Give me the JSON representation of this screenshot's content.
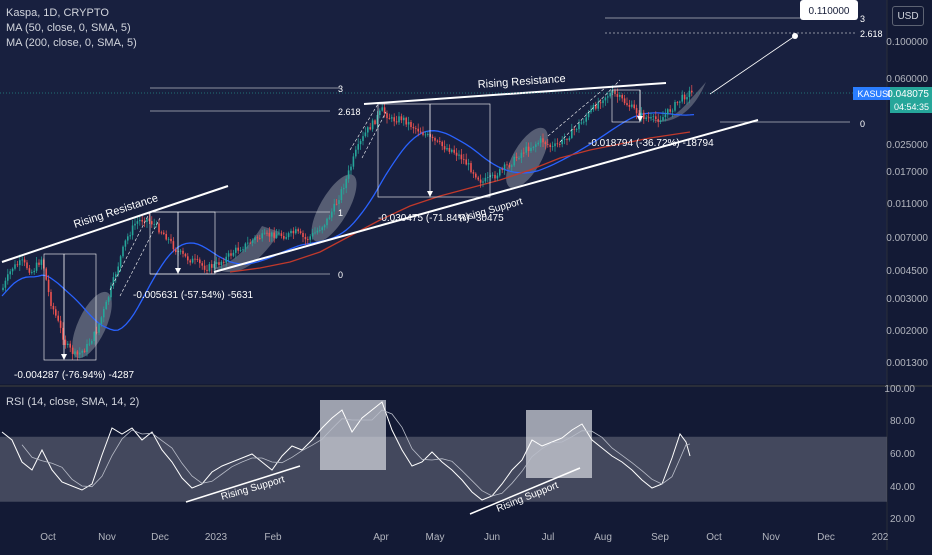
{
  "header": {
    "title": "Kaspa, 1D, CRYPTO",
    "ma50": "MA (50, close, 0, SMA, 5)",
    "ma200": "MA (200, close, 0, SMA, 5)",
    "currency": "USD"
  },
  "rsi_label": "RSI (14, close, SMA, 14, 2)",
  "price_tag": {
    "symbol": "KASUSD",
    "price": "0.048075",
    "countdown": "04:54:35"
  },
  "colors": {
    "background": "#131a35",
    "price_bg": "#18203f",
    "candle_up": "#26a69a",
    "candle_down": "#ef5350",
    "ma50": "#2962ff",
    "ma200": "#c0392b",
    "rsi_band": "#6b6f7d",
    "annotation": "#ffffff",
    "price_tag": "#2a7dff"
  },
  "chart_data": {
    "type": "candlestick",
    "x_ticks": [
      "Oct",
      "Nov",
      "Dec",
      "2023",
      "Feb",
      "Apr",
      "May",
      "Jun",
      "Jul",
      "Aug",
      "Sep",
      "Oct",
      "Nov",
      "Dec",
      "202"
    ],
    "price_ticks": [
      "0.100000",
      "0.060000",
      "0.025000",
      "0.017000",
      "0.011000",
      "0.007000",
      "0.004500",
      "0.003000",
      "0.002000",
      "0.001300"
    ],
    "rsi_ticks": [
      "100.00",
      "80.00",
      "60.00",
      "40.00",
      "20.00"
    ],
    "rsi_band": [
      30,
      70
    ],
    "price_scale": "log",
    "annotations": {
      "rising_resistance_1": "Rising Resistance",
      "rising_resistance_2": "Rising Resistance",
      "rising_support_1": "Rising Support",
      "rising_support_rsi_1": "Rising Support",
      "rising_support_rsi_2": "Rising Support",
      "drop_1": "-0.004287 (-76.94%) -4287",
      "drop_2": "-0.005631 (-57.54%) -5631",
      "drop_3": "-0.030475 (-71.84%) -30475",
      "drop_4": "-0.018794 (-36.72%) -18794",
      "target": "0.110000",
      "fib_3a": "3",
      "fib_2618a": "2.618",
      "fib_1a": "1",
      "fib_0a": "0",
      "fib_3b": "3",
      "fib_2618b": "2.618",
      "fib_0b": "0"
    }
  }
}
